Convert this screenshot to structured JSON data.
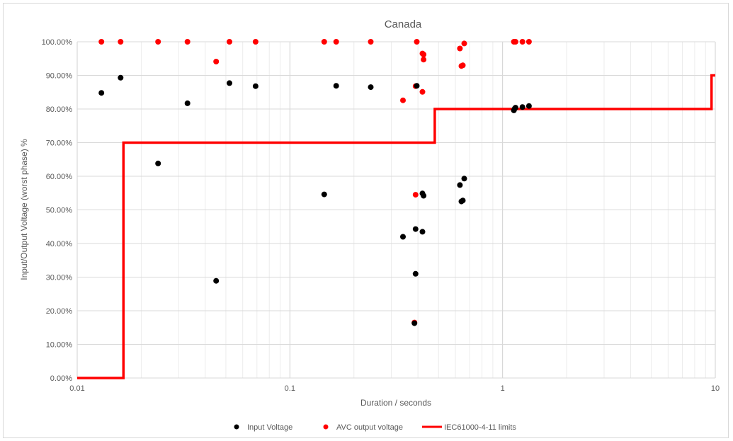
{
  "chart_data": {
    "type": "scatter",
    "title": "Canada",
    "xlabel": "Duration / seconds",
    "ylabel": "Input/Output Voltage (worst phase) %",
    "x_scale": "log",
    "xlim": [
      0.01,
      10
    ],
    "ylim": [
      0,
      100
    ],
    "x_tick_labels": [
      "0.01",
      "0.1",
      "1",
      "10"
    ],
    "x_ticks": [
      0.01,
      0.1,
      1,
      10
    ],
    "y_ticks": [
      0,
      10,
      20,
      30,
      40,
      50,
      60,
      70,
      80,
      90,
      100
    ],
    "y_tick_labels": [
      "0.00%",
      "10.00%",
      "20.00%",
      "30.00%",
      "40.00%",
      "50.00%",
      "60.00%",
      "70.00%",
      "80.00%",
      "90.00%",
      "100.00%"
    ],
    "grid": "on",
    "legend_position": "bottom",
    "series": [
      {
        "name": "Input Voltage",
        "kind": "scatter",
        "color": "#000000",
        "points": [
          [
            0.013,
            84.8
          ],
          [
            0.016,
            89.3
          ],
          [
            0.024,
            63.8
          ],
          [
            0.033,
            81.7
          ],
          [
            0.045,
            28.9
          ],
          [
            0.052,
            87.7
          ],
          [
            0.069,
            86.8
          ],
          [
            0.145,
            54.6
          ],
          [
            0.165,
            86.9
          ],
          [
            0.24,
            86.5
          ],
          [
            0.34,
            42.0
          ],
          [
            0.385,
            16.3
          ],
          [
            0.39,
            31.0
          ],
          [
            0.39,
            44.3
          ],
          [
            0.395,
            86.9
          ],
          [
            0.42,
            43.5
          ],
          [
            0.42,
            54.9
          ],
          [
            0.425,
            54.2
          ],
          [
            0.63,
            57.4
          ],
          [
            0.64,
            52.5
          ],
          [
            0.65,
            52.8
          ],
          [
            0.66,
            59.3
          ],
          [
            1.13,
            79.6
          ],
          [
            1.14,
            80.1
          ],
          [
            1.15,
            80.4
          ],
          [
            1.24,
            80.6
          ],
          [
            1.33,
            80.9
          ]
        ]
      },
      {
        "name": "AVC output voltage",
        "kind": "scatter",
        "color": "#ff0000",
        "points": [
          [
            0.013,
            100
          ],
          [
            0.016,
            100
          ],
          [
            0.024,
            100
          ],
          [
            0.033,
            100
          ],
          [
            0.045,
            94.1
          ],
          [
            0.052,
            100
          ],
          [
            0.069,
            100
          ],
          [
            0.145,
            100
          ],
          [
            0.165,
            100
          ],
          [
            0.24,
            100
          ],
          [
            0.34,
            82.6
          ],
          [
            0.385,
            16.5
          ],
          [
            0.39,
            54.5
          ],
          [
            0.39,
            86.8
          ],
          [
            0.395,
            100
          ],
          [
            0.42,
            96.5
          ],
          [
            0.42,
            85.1
          ],
          [
            0.425,
            96.2
          ],
          [
            0.425,
            94.7
          ],
          [
            0.63,
            98.0
          ],
          [
            0.64,
            92.8
          ],
          [
            0.65,
            93.0
          ],
          [
            0.66,
            99.5
          ],
          [
            1.13,
            100
          ],
          [
            1.15,
            100
          ],
          [
            1.24,
            100
          ],
          [
            1.33,
            100
          ]
        ]
      },
      {
        "name": "IEC61000-4-11 limits",
        "kind": "step-line",
        "color": "#ff0000",
        "points": [
          [
            0.01,
            0
          ],
          [
            0.0165,
            0
          ],
          [
            0.0165,
            70
          ],
          [
            0.48,
            70
          ],
          [
            0.48,
            80
          ],
          [
            9.6,
            80
          ],
          [
            9.6,
            90
          ],
          [
            10,
            90
          ]
        ]
      }
    ]
  }
}
